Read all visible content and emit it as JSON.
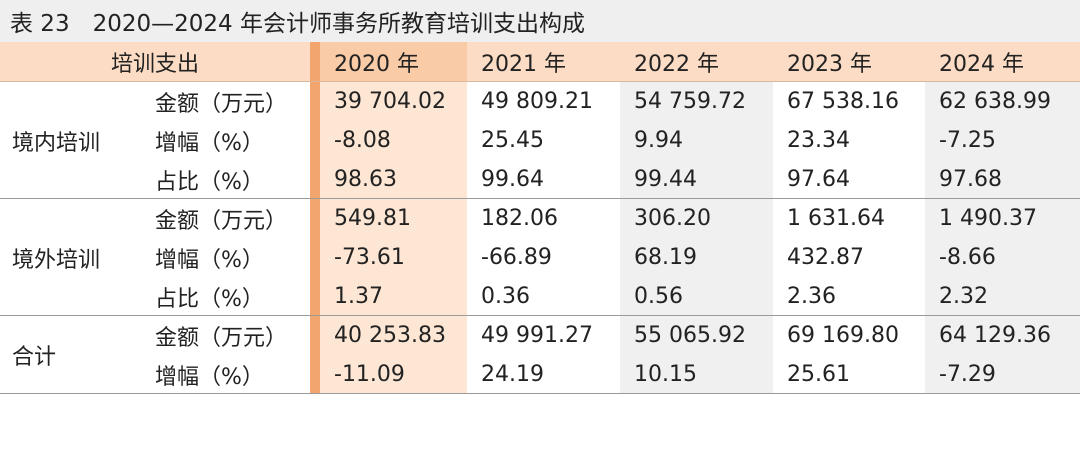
{
  "title": "表 23　2020—2024 年会计师事务所教育培训支出构成",
  "table": {
    "corner": "培训支出",
    "columns": [
      "2020 年",
      "2021 年",
      "2022 年",
      "2023 年",
      "2024 年"
    ],
    "groups": [
      {
        "label": "境内培训",
        "rows": [
          {
            "label": "金额（万元）",
            "cells": [
              "39 704.02",
              "49 809.21",
              "54 759.72",
              "67 538.16",
              "62 638.99"
            ]
          },
          {
            "label": "增幅（%）",
            "cells": [
              "-8.08",
              "25.45",
              "9.94",
              "23.34",
              "-7.25"
            ]
          },
          {
            "label": "占比（%）",
            "cells": [
              "98.63",
              "99.64",
              "99.44",
              "97.64",
              "97.68"
            ]
          }
        ]
      },
      {
        "label": "境外培训",
        "rows": [
          {
            "label": "金额（万元）",
            "cells": [
              "549.81",
              "182.06",
              "306.20",
              "1 631.64",
              "1 490.37"
            ]
          },
          {
            "label": "增幅（%）",
            "cells": [
              "-73.61",
              "-66.89",
              "68.19",
              "432.87",
              "-8.66"
            ]
          },
          {
            "label": "占比（%）",
            "cells": [
              "1.37",
              "0.36",
              "0.56",
              "2.36",
              "2.32"
            ]
          }
        ]
      },
      {
        "label": "合计",
        "rows": [
          {
            "label": "金额（万元）",
            "cells": [
              "40 253.83",
              "49 991.27",
              "55 065.92",
              "69 169.80",
              "64 129.36"
            ]
          },
          {
            "label": "增幅（%）",
            "cells": [
              "-11.09",
              "24.19",
              "10.15",
              "25.61",
              "-7.29"
            ]
          }
        ]
      }
    ]
  }
}
